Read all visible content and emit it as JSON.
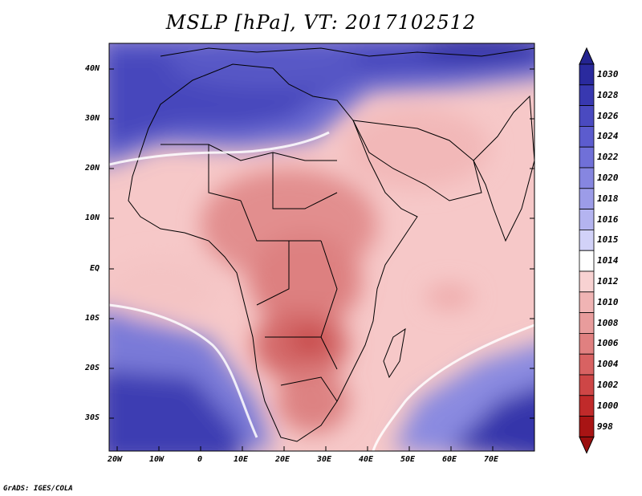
{
  "title": "MSLP [hPa], VT: 2017102512",
  "credit": "GrADS: IGES/COLA",
  "map": {
    "lat_labels": [
      "40N",
      "30N",
      "20N",
      "10N",
      "EQ",
      "10S",
      "20S",
      "30S"
    ],
    "lon_labels": [
      "20W",
      "10W",
      "0",
      "10E",
      "20E",
      "30E",
      "40E",
      "50E",
      "60E",
      "70E"
    ]
  },
  "colorbar": {
    "levels": [
      "1030",
      "1028",
      "1026",
      "1024",
      "1022",
      "1020",
      "1018",
      "1016",
      "1015",
      "1014",
      "1012",
      "1010",
      "1008",
      "1006",
      "1004",
      "1002",
      "1000",
      "998"
    ],
    "colors": [
      "#2a2a9e",
      "#3838b0",
      "#4a4ac0",
      "#5c5cce",
      "#7070d8",
      "#8686e0",
      "#9c9ce8",
      "#b4b4f0",
      "#d2d2f8",
      "#ffffff",
      "#f8d2d2",
      "#f0b4b4",
      "#e89c9c",
      "#e08080",
      "#d86262",
      "#ce4646",
      "#c02a2a",
      "#a81414"
    ],
    "top_color": "#242490",
    "bottom_color": "#9a0e0e"
  },
  "colors": {
    "ocean_high": "#3a3ab4",
    "land_low": "#d97070"
  }
}
